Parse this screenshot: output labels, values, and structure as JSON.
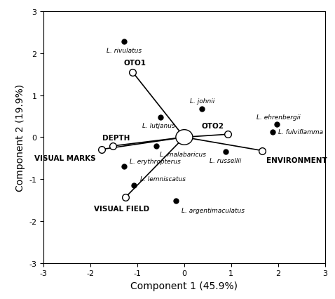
{
  "chart_data": {
    "type": "scatter",
    "xlabel": "Component 1 (45.9%)",
    "ylabel": "Component 2 (19.9%)",
    "xlim": [
      -3,
      3
    ],
    "ylim": [
      -3,
      3
    ],
    "xticks": [
      -3,
      -2,
      -1,
      0,
      1,
      2,
      3
    ],
    "yticks": [
      -3,
      -2,
      -1,
      0,
      1,
      2,
      3
    ],
    "grid": false,
    "points": [
      {
        "label": "L. rivulatus",
        "x": -1.28,
        "y": 2.28
      },
      {
        "label": "L. johnii",
        "x": 0.38,
        "y": 0.68
      },
      {
        "label": "L. lutjanus",
        "x": -0.51,
        "y": 0.48
      },
      {
        "label": "L. ehrenbergii",
        "x": 1.97,
        "y": 0.3
      },
      {
        "label": "L. fulviflamma",
        "x": 1.88,
        "y": 0.13
      },
      {
        "label": "L. malabaricus",
        "x": -0.6,
        "y": -0.21
      },
      {
        "label": "L. russellii",
        "x": 0.88,
        "y": -0.34
      },
      {
        "label": "L. erythropterus",
        "x": -1.29,
        "y": -0.7
      },
      {
        "label": "L. lemniscatus",
        "x": -1.07,
        "y": -1.14
      },
      {
        "label": "L. argentimaculatus",
        "x": -0.18,
        "y": -1.52
      }
    ],
    "vectors": [
      {
        "label": "OTO1",
        "x": -1.1,
        "y": 1.55
      },
      {
        "label": "OTO2",
        "x": 0.93,
        "y": 0.07
      },
      {
        "label": "ENVIRONMENT",
        "x": 1.66,
        "y": -0.32
      },
      {
        "label": "DEPTH",
        "x": -1.53,
        "y": -0.21
      },
      {
        "label": "VISUAL MARKS",
        "x": -1.76,
        "y": -0.29
      },
      {
        "label": "VISUAL FIELD",
        "x": -1.25,
        "y": -1.43
      }
    ]
  }
}
